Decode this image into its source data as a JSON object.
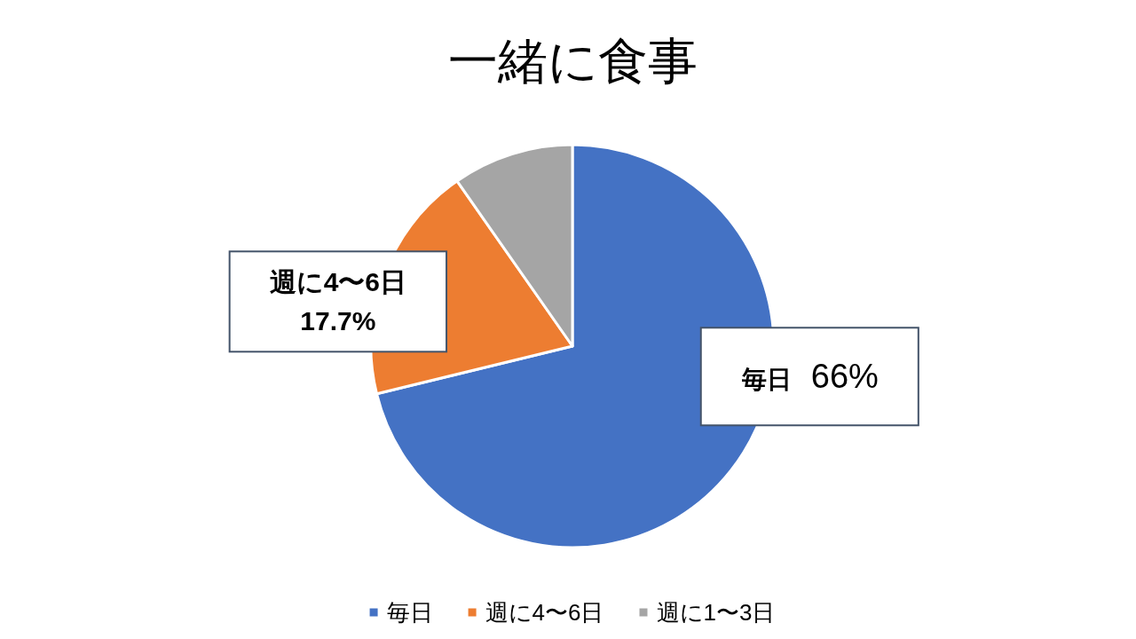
{
  "chart_data": {
    "type": "pie",
    "title": "一緒に食事",
    "categories": [
      "毎日",
      "週に4〜6日",
      "週に1〜3日"
    ],
    "values": [
      66,
      17.7,
      9
    ],
    "colors": [
      "#4472c4",
      "#ed7d31",
      "#a5a5a5"
    ],
    "value_labels": [
      "66%",
      "17.7%",
      null
    ],
    "legend": "bottom"
  }
}
